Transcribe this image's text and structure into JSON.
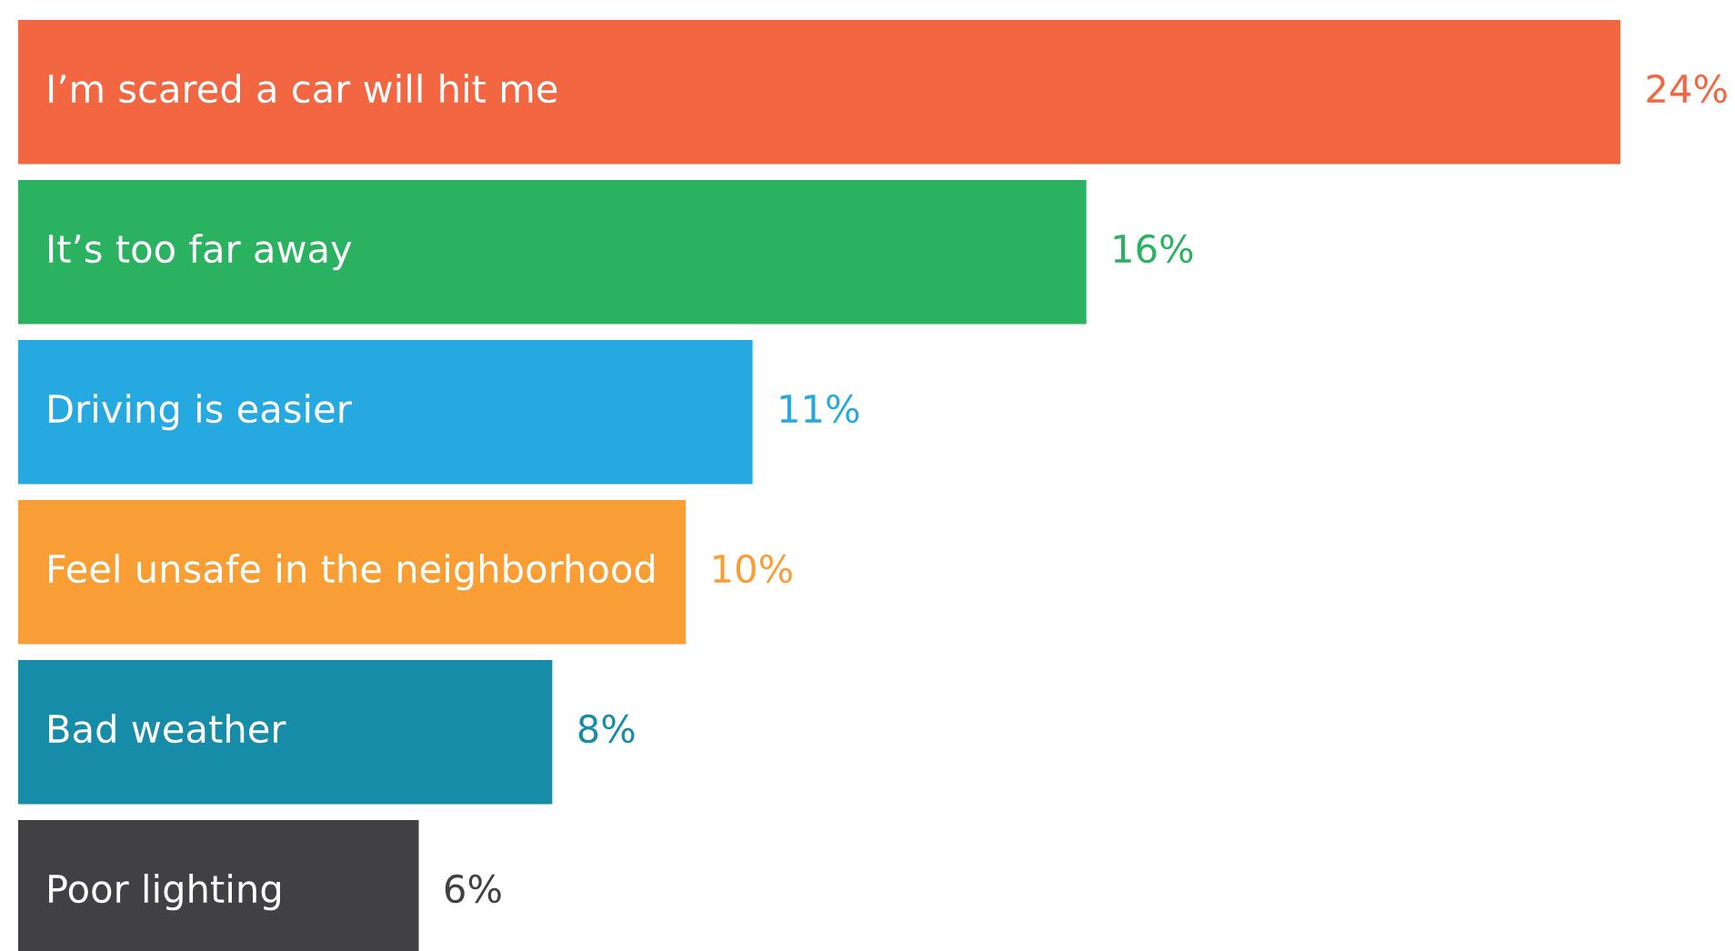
{
  "chart_data": {
    "type": "bar",
    "orientation": "horizontal",
    "categories": [
      "I’m scared a car will hit me",
      "It’s too far away",
      "Driving is easier",
      "Feel unsafe in the neighborhood",
      "Bad weather",
      "Poor lighting"
    ],
    "values": [
      24,
      16,
      11,
      10,
      8,
      6
    ],
    "colors": [
      "#f26641",
      "#2bb261",
      "#26a9e0",
      "#f99d35",
      "#178ca8",
      "#414042"
    ],
    "value_labels": [
      "24%",
      "16%",
      "11%",
      "10%",
      "8%",
      "6%"
    ]
  }
}
